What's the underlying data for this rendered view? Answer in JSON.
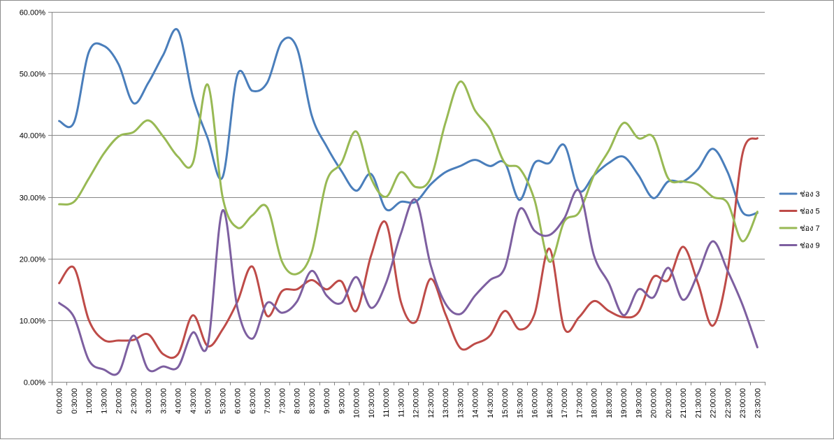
{
  "chart_data": {
    "type": "line",
    "title": "",
    "xlabel": "",
    "ylabel": "",
    "ylim": [
      0,
      60
    ],
    "y_ticks": [
      "0.00%",
      "10.00%",
      "20.00%",
      "30.00%",
      "40.00%",
      "50.00%",
      "60.00%"
    ],
    "grid": "horizontal",
    "legend_position": "right",
    "smooth": true,
    "categories": [
      "0:00:00",
      "0:30:00",
      "1:00:00",
      "1:30:00",
      "2:00:00",
      "2:30:00",
      "3:00:00",
      "3:30:00",
      "4:00:00",
      "4:30:00",
      "5:00:00",
      "5:30:00",
      "6:00:00",
      "6:30:00",
      "7:00:00",
      "7:30:00",
      "8:00:00",
      "8:30:00",
      "9:00:00",
      "9:30:00",
      "10:00:00",
      "10:30:00",
      "11:00:00",
      "11:30:00",
      "12:00:00",
      "12:30:00",
      "13:00:00",
      "13:30:00",
      "14:00:00",
      "14:30:00",
      "15:00:00",
      "15:30:00",
      "16:00:00",
      "16:30:00",
      "17:00:00",
      "17:30:00",
      "18:00:00",
      "18:30:00",
      "19:00:00",
      "19:30:00",
      "20:00:00",
      "20:30:00",
      "21:00:00",
      "21:30:00",
      "22:00:00",
      "22:30:00",
      "23:00:00",
      "23:30:00"
    ],
    "series": [
      {
        "name": "ช่อง 3",
        "color": "#4a7ebb",
        "values": [
          42.3,
          42.1,
          53.5,
          54.5,
          51.5,
          45.2,
          48.5,
          53.0,
          57.0,
          46.2,
          39.5,
          33.2,
          49.8,
          47.2,
          48.5,
          55.2,
          54.2,
          43.2,
          38.2,
          34.2,
          31.0,
          33.7,
          28.0,
          29.2,
          29.2,
          32.0,
          34.0,
          35.0,
          36.0,
          35.0,
          35.5,
          29.5,
          35.5,
          35.5,
          38.4,
          31.0,
          33.5,
          35.5,
          36.5,
          33.5,
          29.8,
          32.5,
          32.5,
          34.5,
          37.8,
          34.0,
          27.5,
          27.4
        ]
      },
      {
        "name": "ช่อง 5",
        "color": "#be4b48",
        "values": [
          16.0,
          18.5,
          10.0,
          6.8,
          6.7,
          6.8,
          7.7,
          4.5,
          4.5,
          10.8,
          5.8,
          8.5,
          13.0,
          18.7,
          10.7,
          14.7,
          15.0,
          16.5,
          15.0,
          16.3,
          11.5,
          20.5,
          25.8,
          13.0,
          9.7,
          16.7,
          11.0,
          5.5,
          6.2,
          7.5,
          11.5,
          8.5,
          11.0,
          21.6,
          8.7,
          10.5,
          13.1,
          11.5,
          10.5,
          11.3,
          17.0,
          16.5,
          21.9,
          16.0,
          9.1,
          18.0,
          37.0,
          39.5
        ]
      },
      {
        "name": "ช่อง 7",
        "color": "#98b954",
        "values": [
          28.8,
          29.2,
          33.0,
          37.0,
          39.8,
          40.5,
          42.4,
          39.8,
          36.5,
          35.5,
          48.2,
          30.0,
          25.0,
          27.0,
          28.3,
          19.5,
          17.5,
          21.0,
          32.5,
          35.5,
          40.6,
          33.0,
          30.0,
          34.0,
          31.6,
          33.0,
          42.0,
          48.7,
          44.0,
          41.0,
          35.5,
          34.6,
          29.5,
          19.5,
          26.0,
          27.5,
          33.5,
          37.5,
          42.0,
          39.5,
          39.7,
          33.0,
          32.5,
          32.0,
          30.0,
          29.0,
          22.8,
          27.6
        ]
      },
      {
        "name": "ช่อง 9",
        "color": "#7d5fa0",
        "values": [
          12.8,
          10.5,
          3.5,
          2.0,
          1.5,
          7.5,
          2.0,
          2.5,
          2.4,
          8.0,
          6.0,
          27.8,
          12.0,
          7.0,
          12.8,
          11.2,
          13.0,
          18.0,
          14.0,
          12.8,
          17.0,
          12.0,
          16.0,
          24.0,
          29.5,
          19.0,
          12.7,
          11.0,
          14.0,
          16.5,
          18.5,
          28.0,
          24.5,
          23.8,
          26.5,
          31.0,
          20.5,
          16.0,
          10.8,
          15.0,
          13.7,
          18.5,
          13.3,
          17.5,
          22.8,
          18.0,
          12.5,
          5.6
        ]
      }
    ]
  }
}
